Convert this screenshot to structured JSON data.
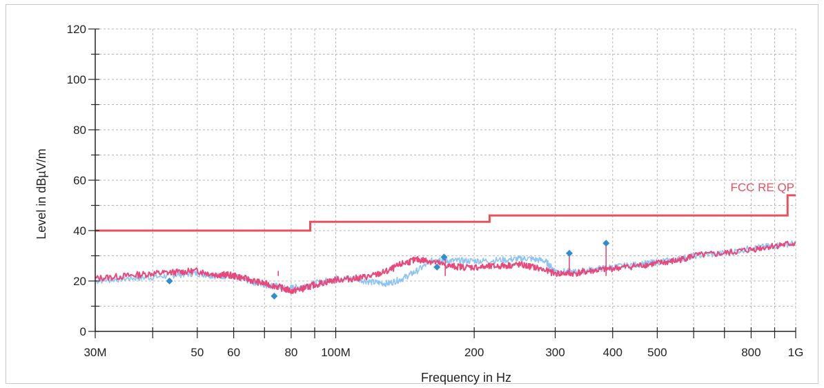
{
  "chart_data": {
    "type": "line",
    "title": "",
    "xlabel": "Frequency in Hz",
    "ylabel": "Level in dBµV/m",
    "xscale": "log",
    "xlim": [
      30000000,
      1000000000
    ],
    "ylim": [
      0,
      120
    ],
    "grid": true,
    "x_ticks": [
      {
        "value": 30000000,
        "label": "30M"
      },
      {
        "value": 50000000,
        "label": "50"
      },
      {
        "value": 60000000,
        "label": "60"
      },
      {
        "value": 80000000,
        "label": "80"
      },
      {
        "value": 100000000,
        "label": "100M"
      },
      {
        "value": 200000000,
        "label": "200"
      },
      {
        "value": 300000000,
        "label": "300"
      },
      {
        "value": 400000000,
        "label": "400"
      },
      {
        "value": 500000000,
        "label": "500"
      },
      {
        "value": 800000000,
        "label": "800"
      },
      {
        "value": 1000000000,
        "label": "1G"
      }
    ],
    "x_minor_ticks": [
      40000000,
      70000000,
      90000000,
      600000000,
      700000000,
      900000000
    ],
    "y_ticks": [
      0,
      20,
      40,
      60,
      80,
      100,
      120
    ],
    "limit_line": {
      "name": "FCC RE QP",
      "color": "#e8505b",
      "points": [
        [
          30000000,
          40
        ],
        [
          88000000,
          40
        ],
        [
          88000000,
          43.5
        ],
        [
          216000000,
          43.5
        ],
        [
          216000000,
          46
        ],
        [
          960000000,
          46
        ],
        [
          960000000,
          54
        ],
        [
          1000000000,
          54
        ]
      ]
    },
    "series": [
      {
        "key": "trace_blue",
        "color": "#8cc4f5",
        "points": [
          [
            30000000,
            20
          ],
          [
            35000000,
            21
          ],
          [
            40000000,
            21.5
          ],
          [
            45000000,
            22.5
          ],
          [
            50000000,
            23
          ],
          [
            55000000,
            22
          ],
          [
            60000000,
            22
          ],
          [
            65000000,
            20
          ],
          [
            70000000,
            18.5
          ],
          [
            74000000,
            18
          ],
          [
            78000000,
            17
          ],
          [
            82000000,
            17.5
          ],
          [
            90000000,
            19
          ],
          [
            100000000,
            21
          ],
          [
            110000000,
            21
          ],
          [
            120000000,
            19.5
          ],
          [
            130000000,
            19
          ],
          [
            140000000,
            21
          ],
          [
            150000000,
            24
          ],
          [
            165000000,
            29
          ],
          [
            175000000,
            28
          ],
          [
            190000000,
            28
          ],
          [
            210000000,
            28
          ],
          [
            240000000,
            28.5
          ],
          [
            260000000,
            29
          ],
          [
            285000000,
            28
          ],
          [
            300000000,
            24
          ],
          [
            330000000,
            23.5
          ],
          [
            360000000,
            24.5
          ],
          [
            400000000,
            25.5
          ],
          [
            450000000,
            26.5
          ],
          [
            500000000,
            27.5
          ],
          [
            550000000,
            28.5
          ],
          [
            600000000,
            30
          ],
          [
            700000000,
            31
          ],
          [
            800000000,
            33
          ],
          [
            900000000,
            34
          ],
          [
            1000000000,
            35
          ]
        ]
      },
      {
        "key": "trace_pink",
        "color": "#e8487a",
        "points": [
          [
            30000000,
            21
          ],
          [
            35000000,
            22
          ],
          [
            40000000,
            23
          ],
          [
            45000000,
            23.5
          ],
          [
            50000000,
            24
          ],
          [
            55000000,
            22.5
          ],
          [
            58000000,
            22.5
          ],
          [
            62000000,
            21.5
          ],
          [
            68000000,
            19.5
          ],
          [
            74000000,
            18
          ],
          [
            80000000,
            16
          ],
          [
            85000000,
            17
          ],
          [
            90000000,
            18.5
          ],
          [
            100000000,
            20.5
          ],
          [
            110000000,
            21
          ],
          [
            120000000,
            22
          ],
          [
            130000000,
            24
          ],
          [
            140000000,
            27
          ],
          [
            150000000,
            28.5
          ],
          [
            160000000,
            28
          ],
          [
            175000000,
            26
          ],
          [
            190000000,
            25.5
          ],
          [
            210000000,
            25.5
          ],
          [
            230000000,
            26
          ],
          [
            250000000,
            26.5
          ],
          [
            270000000,
            25.5
          ],
          [
            300000000,
            23
          ],
          [
            330000000,
            23
          ],
          [
            360000000,
            24
          ],
          [
            400000000,
            25
          ],
          [
            450000000,
            26
          ],
          [
            500000000,
            27
          ],
          [
            550000000,
            28
          ],
          [
            600000000,
            30
          ],
          [
            700000000,
            31
          ],
          [
            800000000,
            32.5
          ],
          [
            900000000,
            34
          ],
          [
            1000000000,
            35
          ]
        ]
      }
    ],
    "spikes": [
      {
        "x": 75000000,
        "y": 24
      },
      {
        "x": 173000000,
        "y": 30
      },
      {
        "x": 322000000,
        "y": 31
      },
      {
        "x": 387000000,
        "y": 35
      }
    ],
    "markers": {
      "color": "#2f8ed1",
      "points": [
        [
          43500000,
          20
        ],
        [
          73500000,
          14
        ],
        [
          166000000,
          25.5
        ],
        [
          172000000,
          29.5
        ],
        [
          322000000,
          31
        ],
        [
          387000000,
          35
        ]
      ]
    }
  }
}
